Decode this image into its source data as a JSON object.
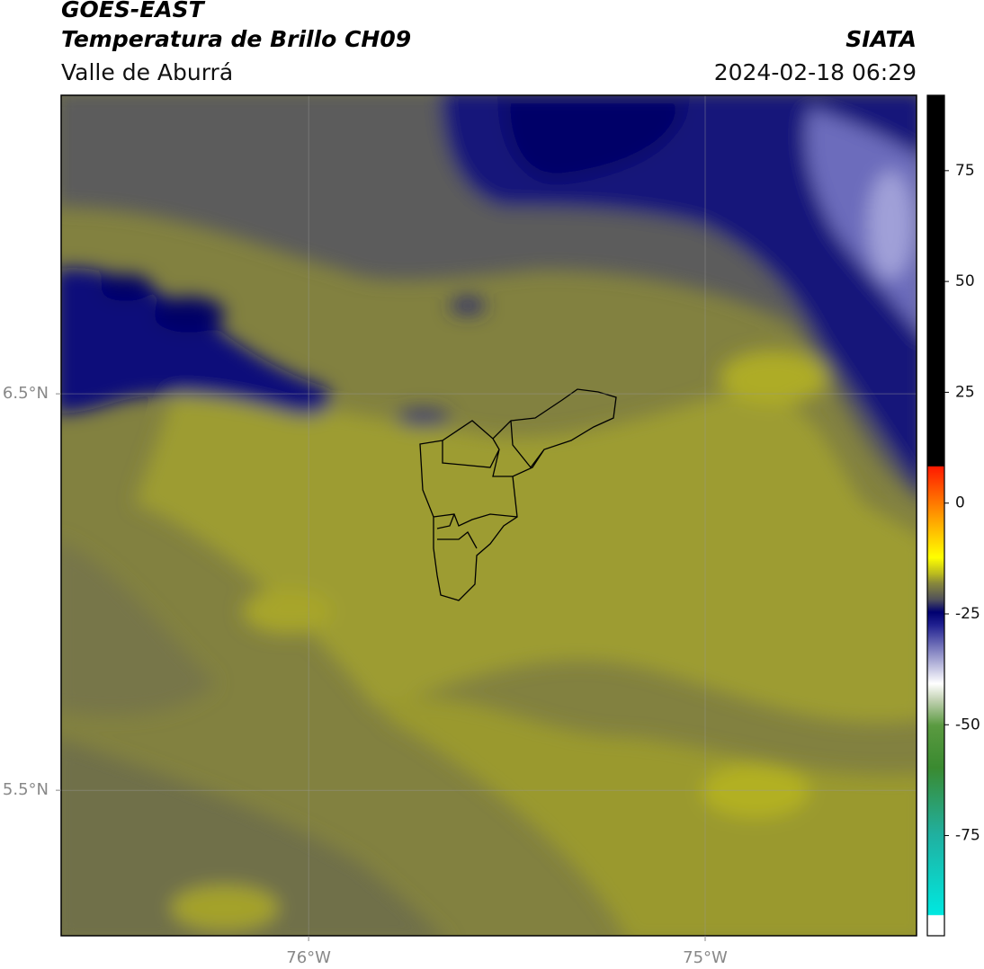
{
  "header": {
    "title": "GOES-EAST",
    "subtitle": "Temperatura de Brillo CH09",
    "region": "Valle de Aburrá",
    "source": "SIATA",
    "datetime": "2024-02-18 06:29"
  },
  "map": {
    "xlim": [
      -76.624,
      -74.467
    ],
    "ylim": [
      5.133,
      7.253
    ],
    "xticks": [
      {
        "value": -76,
        "label": "76°W"
      },
      {
        "value": -75,
        "label": "75°W"
      }
    ],
    "yticks": [
      {
        "value": 6.5,
        "label": "6.5°N"
      },
      {
        "value": 5.5,
        "label": "5.5°N"
      }
    ],
    "grid": true
  },
  "colorbar": {
    "lim": [
      -97.6,
      92
    ],
    "ticks": [
      75,
      50,
      25,
      0,
      -25,
      -50,
      -75
    ]
  }
}
